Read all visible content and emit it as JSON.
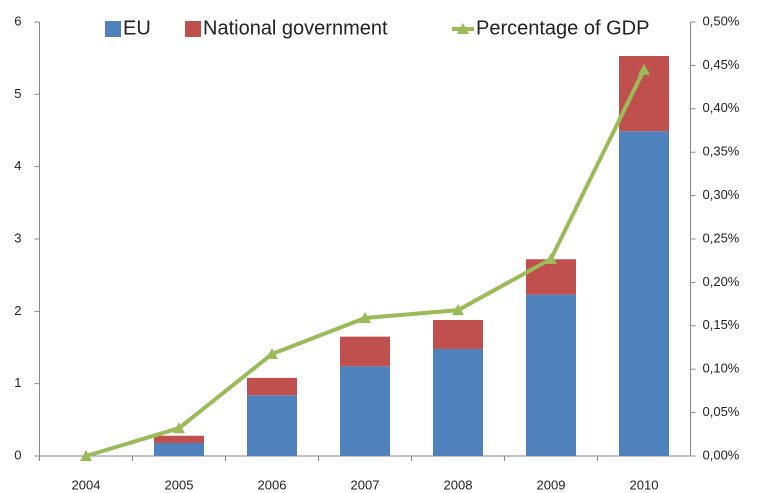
{
  "chart_data": {
    "type": "bar",
    "stacked": true,
    "categories": [
      "2004",
      "2005",
      "2006",
      "2007",
      "2008",
      "2009",
      "2010"
    ],
    "series": [
      {
        "name": "EU",
        "color": "#4f81bd",
        "values": [
          0,
          0.18,
          0.84,
          1.24,
          1.48,
          2.23,
          4.49
        ]
      },
      {
        "name": "National government",
        "color": "#c0504d",
        "values": [
          0,
          0.1,
          0.24,
          0.41,
          0.4,
          0.49,
          1.04
        ]
      },
      {
        "name": "Percentage of GDP",
        "color": "#9bbb59",
        "type": "line",
        "axis": "y2",
        "values": [
          0,
          0.032,
          0.1175,
          0.159,
          0.168,
          0.227,
          0.445
        ]
      }
    ],
    "ylim": [
      0,
      6
    ],
    "yticks": [
      0,
      1,
      2,
      3,
      4,
      5,
      6
    ],
    "y2lim": [
      0,
      0.5
    ],
    "y2ticks": [
      {
        "value": 0,
        "label": "0,00%"
      },
      {
        "value": 0.05,
        "label": "0,05%"
      },
      {
        "value": 0.1,
        "label": "0,10%"
      },
      {
        "value": 0.15,
        "label": "0,15%"
      },
      {
        "value": 0.2,
        "label": "0,20%"
      },
      {
        "value": 0.25,
        "label": "0,25%"
      },
      {
        "value": 0.3,
        "label": "0,30%"
      },
      {
        "value": 0.35,
        "label": "0,35%"
      },
      {
        "value": 0.4,
        "label": "0,40%"
      },
      {
        "value": 0.45,
        "label": "0,45%"
      },
      {
        "value": 0.5,
        "label": "0,50%"
      }
    ],
    "grid": false,
    "legend": "top"
  }
}
